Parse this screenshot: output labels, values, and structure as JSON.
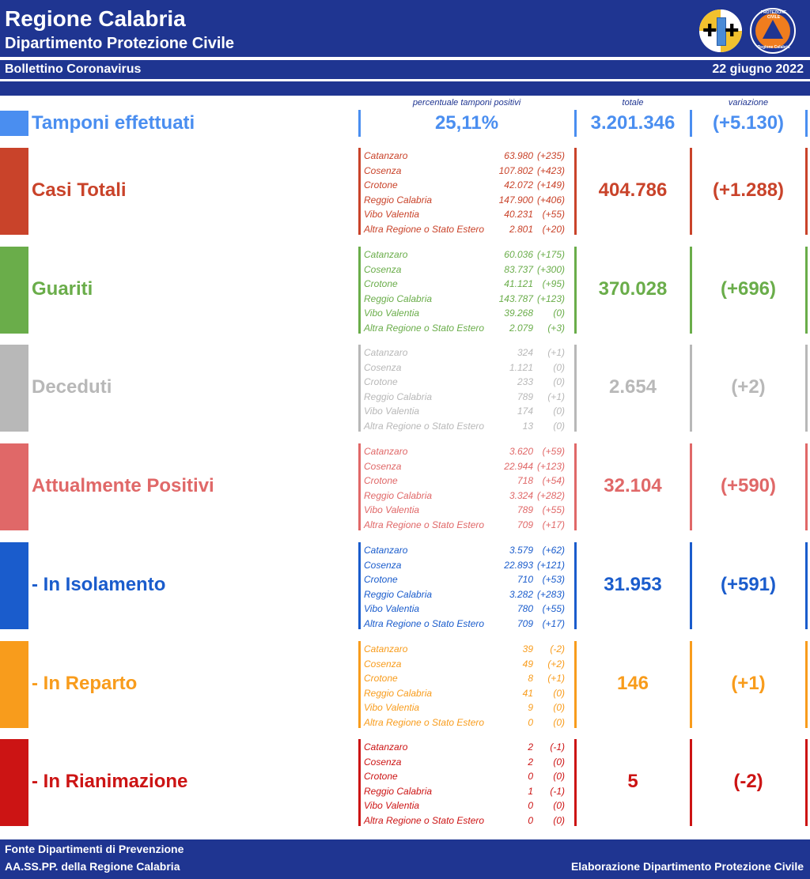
{
  "header": {
    "title": "Regione Calabria",
    "subtitle": "Dipartimento Protezione Civile",
    "logo2_top": "PROTEZIONE CIVILE",
    "logo2_bottom": "Regione Calabria"
  },
  "bulletin": {
    "left": "Bollettino Coronavirus",
    "date": "22 giugno 2022"
  },
  "columns": {
    "pct": "percentuale tamponi positivi",
    "totale": "totale",
    "variazione": "variazione"
  },
  "tamponi": {
    "label": "Tamponi effettuati",
    "pct": "25,11%",
    "total": "3.201.346",
    "delta": "(+5.130)",
    "color": "#4a8ef0"
  },
  "sections": [
    {
      "label": "Casi Totali",
      "total": "404.786",
      "delta": "(+1.288)",
      "color": "#c9432a",
      "rows": [
        {
          "name": "Catanzaro",
          "value": "63.980",
          "delta": "(+235)"
        },
        {
          "name": "Cosenza",
          "value": "107.802",
          "delta": "(+423)"
        },
        {
          "name": "Crotone",
          "value": "42.072",
          "delta": "(+149)"
        },
        {
          "name": "Reggio Calabria",
          "value": "147.900",
          "delta": "(+406)"
        },
        {
          "name": "Vibo Valentia",
          "value": "40.231",
          "delta": "(+55)"
        },
        {
          "name": "Altra Regione o Stato Estero",
          "value": "2.801",
          "delta": "(+20)"
        }
      ]
    },
    {
      "label": "Guariti",
      "total": "370.028",
      "delta": "(+696)",
      "color": "#6aad4a",
      "rows": [
        {
          "name": "Catanzaro",
          "value": "60.036",
          "delta": "(+175)"
        },
        {
          "name": "Cosenza",
          "value": "83.737",
          "delta": "(+300)"
        },
        {
          "name": "Crotone",
          "value": "41.121",
          "delta": "(+95)"
        },
        {
          "name": "Reggio Calabria",
          "value": "143.787",
          "delta": "(+123)"
        },
        {
          "name": "Vibo Valentia",
          "value": "39.268",
          "delta": "(0)"
        },
        {
          "name": "Altra Regione o Stato Estero",
          "value": "2.079",
          "delta": "(+3)"
        }
      ]
    },
    {
      "label": "Deceduti",
      "total": "2.654",
      "delta": "(+2)",
      "color": "#b8b8b8",
      "rows": [
        {
          "name": "Catanzaro",
          "value": "324",
          "delta": "(+1)"
        },
        {
          "name": "Cosenza",
          "value": "1.121",
          "delta": "(0)"
        },
        {
          "name": "Crotone",
          "value": "233",
          "delta": "(0)"
        },
        {
          "name": "Reggio Calabria",
          "value": "789",
          "delta": "(+1)"
        },
        {
          "name": "Vibo Valentia",
          "value": "174",
          "delta": "(0)"
        },
        {
          "name": "Altra Regione o Stato Estero",
          "value": "13",
          "delta": "(0)"
        }
      ]
    },
    {
      "label": "Attualmente Positivi",
      "total": "32.104",
      "delta": "(+590)",
      "color": "#e06868",
      "rows": [
        {
          "name": "Catanzaro",
          "value": "3.620",
          "delta": "(+59)"
        },
        {
          "name": "Cosenza",
          "value": "22.944",
          "delta": "(+123)"
        },
        {
          "name": "Crotone",
          "value": "718",
          "delta": "(+54)"
        },
        {
          "name": "Reggio Calabria",
          "value": "3.324",
          "delta": "(+282)"
        },
        {
          "name": "Vibo Valentia",
          "value": "789",
          "delta": "(+55)"
        },
        {
          "name": "Altra Regione o Stato Estero",
          "value": "709",
          "delta": "(+17)"
        }
      ]
    },
    {
      "label": " - In Isolamento",
      "total": "31.953",
      "delta": "(+591)",
      "color": "#1a5ccc",
      "rows": [
        {
          "name": "Catanzaro",
          "value": "3.579",
          "delta": "(+62)"
        },
        {
          "name": "Cosenza",
          "value": "22.893",
          "delta": "(+121)"
        },
        {
          "name": "Crotone",
          "value": "710",
          "delta": "(+53)"
        },
        {
          "name": "Reggio Calabria",
          "value": "3.282",
          "delta": "(+283)"
        },
        {
          "name": "Vibo Valentia",
          "value": "780",
          "delta": "(+55)"
        },
        {
          "name": "Altra Regione o Stato Estero",
          "value": "709",
          "delta": "(+17)"
        }
      ]
    },
    {
      "label": " - In Reparto",
      "total": "146",
      "delta": "(+1)",
      "color": "#f89c1c",
      "rows": [
        {
          "name": "Catanzaro",
          "value": "39",
          "delta": "(-2)"
        },
        {
          "name": "Cosenza",
          "value": "49",
          "delta": "(+2)"
        },
        {
          "name": "Crotone",
          "value": "8",
          "delta": "(+1)"
        },
        {
          "name": "Reggio Calabria",
          "value": "41",
          "delta": "(0)"
        },
        {
          "name": "Vibo Valentia",
          "value": "9",
          "delta": "(0)"
        },
        {
          "name": "Altra Regione o Stato Estero",
          "value": "0",
          "delta": "(0)"
        }
      ]
    },
    {
      "label": " - In Rianimazione",
      "total": "5",
      "delta": "(-2)",
      "color": "#cc1414",
      "rows": [
        {
          "name": "Catanzaro",
          "value": "2",
          "delta": "(-1)"
        },
        {
          "name": "Cosenza",
          "value": "2",
          "delta": "(0)"
        },
        {
          "name": "Crotone",
          "value": "0",
          "delta": "(0)"
        },
        {
          "name": "Reggio Calabria",
          "value": "1",
          "delta": "(-1)"
        },
        {
          "name": "Vibo Valentia",
          "value": "0",
          "delta": "(0)"
        },
        {
          "name": "Altra Regione o Stato Estero",
          "value": "0",
          "delta": "(0)"
        }
      ]
    }
  ],
  "footer": {
    "line1": "Fonte Dipartimenti di Prevenzione",
    "line2": "AA.SS.PP.  della Regione Calabria",
    "right": "Elaborazione Dipartimento Protezione Civile"
  }
}
